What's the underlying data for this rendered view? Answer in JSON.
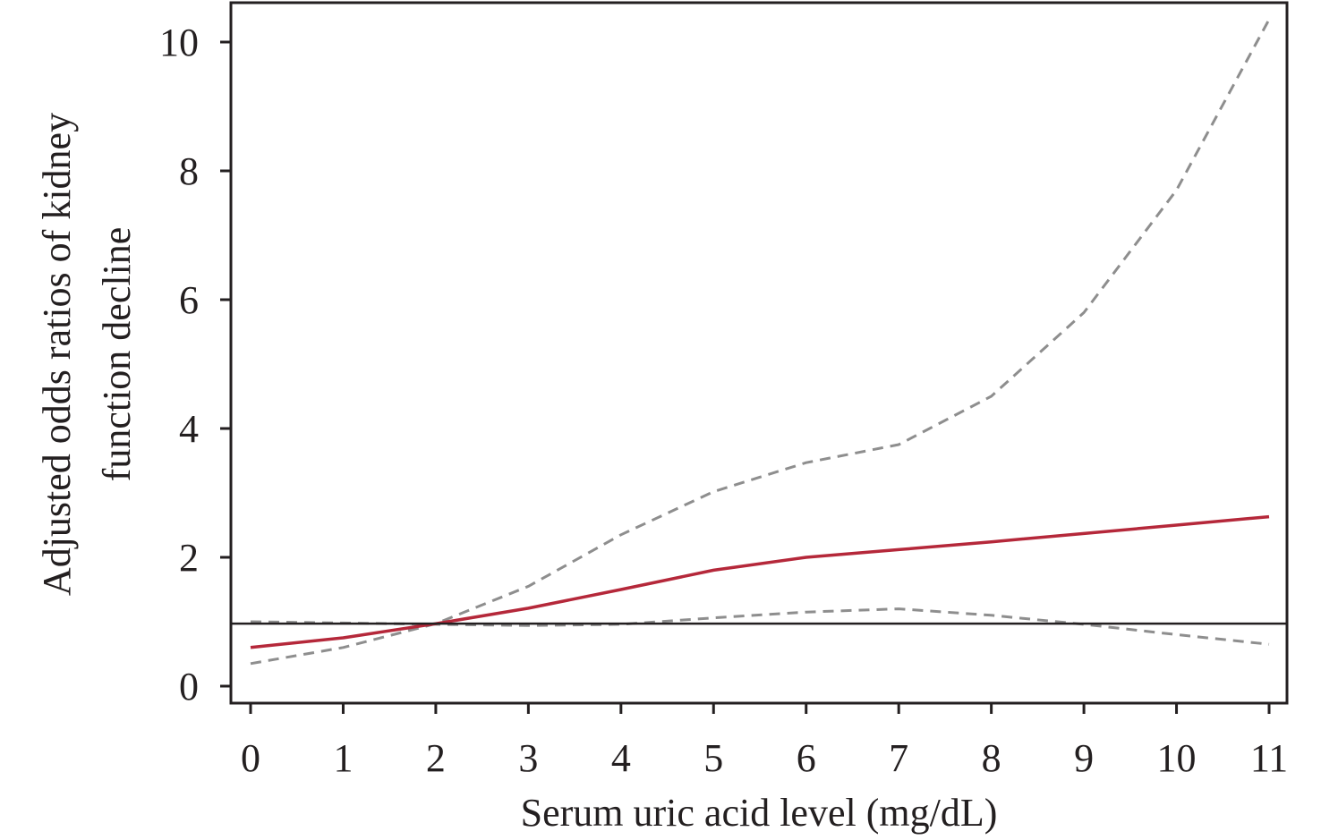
{
  "chart_data": {
    "type": "line",
    "xlabel": "Serum uric acid level (mg/dL)",
    "ylabel_lines": [
      "Adjusted odds ratios of kidney",
      "function decline"
    ],
    "xlim": [
      0,
      11
    ],
    "ylim": [
      0,
      10
    ],
    "x_ticks": [
      "0",
      "1",
      "2",
      "3",
      "4",
      "5",
      "6",
      "7",
      "8",
      "9",
      "10",
      "11"
    ],
    "y_ticks": [
      "0",
      "2",
      "4",
      "6",
      "8",
      "10"
    ],
    "reference_line": 0.97,
    "grid": false,
    "series": [
      {
        "style": "solid",
        "color": "#b5283a",
        "x": [
          0,
          1,
          2,
          3,
          4,
          5,
          6,
          7,
          8,
          9,
          10,
          11
        ],
        "values": [
          0.6,
          0.75,
          0.97,
          1.21,
          1.5,
          1.8,
          2.0,
          2.12,
          2.24,
          2.37,
          2.5,
          2.63
        ]
      },
      {
        "style": "dashed",
        "color": "#8e8e8e",
        "x": [
          0,
          1,
          2,
          3,
          4,
          5,
          6,
          7,
          8,
          9,
          10,
          11
        ],
        "values": [
          0.35,
          0.6,
          0.97,
          1.55,
          2.35,
          3.02,
          3.47,
          3.75,
          4.5,
          5.8,
          7.7,
          10.35
        ]
      },
      {
        "style": "dashed",
        "color": "#8e8e8e",
        "x": [
          0,
          1,
          2,
          3,
          4,
          5,
          6,
          7,
          8,
          9,
          10,
          11
        ],
        "values": [
          1.0,
          0.98,
          0.96,
          0.94,
          0.96,
          1.06,
          1.15,
          1.2,
          1.1,
          0.96,
          0.8,
          0.65
        ]
      }
    ],
    "colors": {
      "frame": "#231f20",
      "reference": "#231f20",
      "text": "#231f20"
    }
  }
}
